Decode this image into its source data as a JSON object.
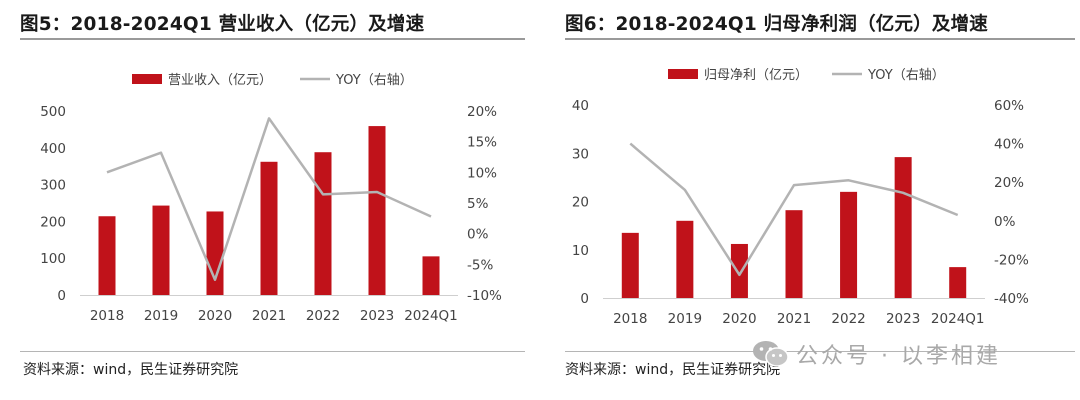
{
  "watermark": "公众号 · 以李相建",
  "charts": [
    {
      "figure_title": "图5：2018-2024Q1 营业收入（亿元）及增速",
      "source": "资料来源：wind，民生证券研究院",
      "colors": {
        "bar": "#c0121a",
        "line": "#b3b3b3"
      }
    },
    {
      "figure_title": "图6：2018-2024Q1 归母净利润（亿元）及增速",
      "source": "资料来源：wind，民生证券研究院",
      "colors": {
        "bar": "#c0121a",
        "line": "#b3b3b3"
      }
    }
  ],
  "chart_data": [
    {
      "type": "bar",
      "title": "图5：2018-2024Q1 营业收入（亿元）及增速",
      "categories": [
        "2018",
        "2019",
        "2020",
        "2021",
        "2022",
        "2023",
        "2024Q1"
      ],
      "series": [
        {
          "name": "营业收入（亿元）",
          "type": "bar",
          "axis": "left",
          "values": [
            214,
            243,
            227,
            362,
            388,
            459,
            105
          ]
        },
        {
          "name": "YOY（右轴）",
          "type": "line",
          "axis": "right",
          "values": [
            10,
            13.2,
            -7.5,
            18.8,
            6.4,
            6.8,
            2.8
          ]
        }
      ],
      "y_left": {
        "min": 0,
        "max": 500,
        "ticks": [
          "0",
          "100",
          "200",
          "300",
          "400",
          "500"
        ]
      },
      "y_right": {
        "min": -10,
        "max": 20,
        "ticks": [
          "-10%",
          "-5%",
          "0%",
          "5%",
          "10%",
          "15%",
          "20%"
        ]
      },
      "legend_position": "top-center",
      "grid": false
    },
    {
      "type": "bar",
      "title": "图6：2018-2024Q1 归母净利润（亿元）及增速",
      "categories": [
        "2018",
        "2019",
        "2020",
        "2021",
        "2022",
        "2023",
        "2024Q1"
      ],
      "series": [
        {
          "name": "归母净利（亿元）",
          "type": "bar",
          "axis": "left",
          "values": [
            13.5,
            16,
            11.2,
            18.2,
            22,
            29.2,
            6.4
          ]
        },
        {
          "name": "YOY（右轴）",
          "type": "line",
          "axis": "right",
          "values": [
            40,
            16,
            -28,
            18.5,
            21,
            14.5,
            3
          ]
        }
      ],
      "y_left": {
        "min": 0,
        "max": 40,
        "ticks": [
          "0",
          "10",
          "20",
          "30",
          "40"
        ]
      },
      "y_right": {
        "min": -40,
        "max": 60,
        "ticks": [
          "-40%",
          "-20%",
          "0%",
          "20%",
          "40%",
          "60%"
        ]
      },
      "legend_position": "top-center",
      "grid": false
    }
  ]
}
